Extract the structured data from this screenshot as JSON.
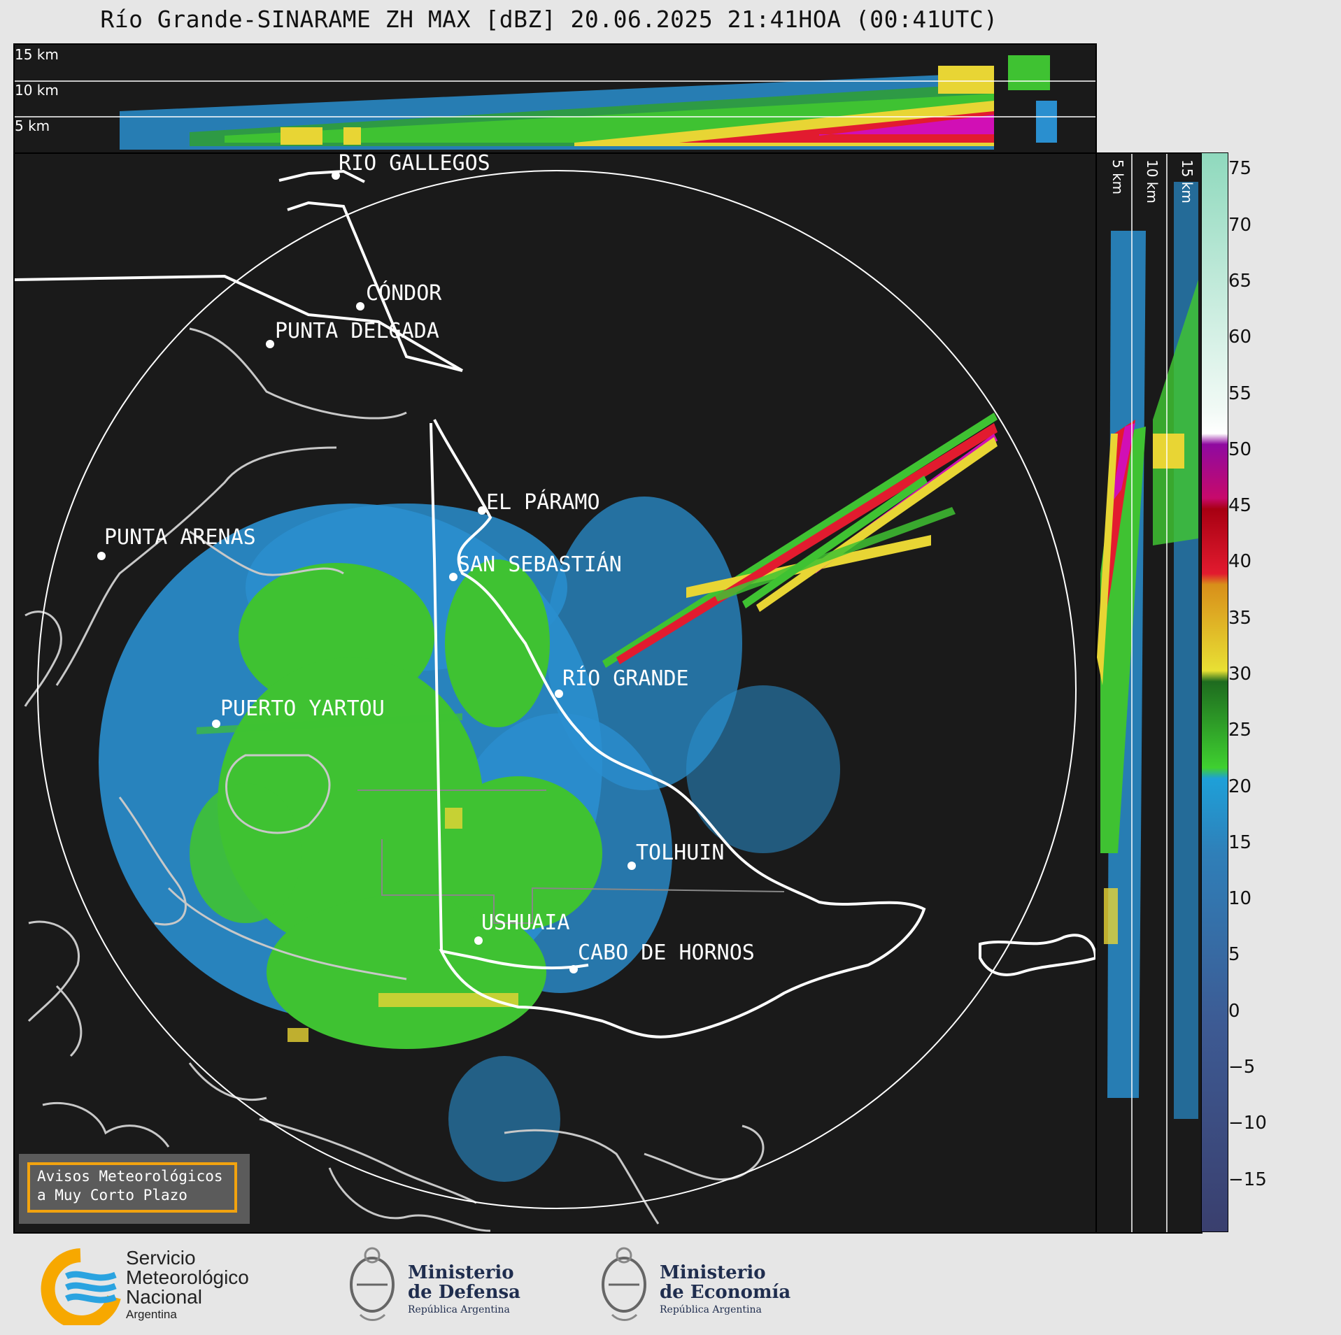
{
  "title": "Río Grande-SINARAME ZH MAX [dBZ] 20.06.2025 21:41HOA (00:41UTC)",
  "top_panel_altitudes": [
    "15 km",
    "10 km",
    "5 km"
  ],
  "side_panel_altitudes": [
    "5 km",
    "10 km",
    "15 km"
  ],
  "colorbar": {
    "ticks": [
      "75",
      "70",
      "65",
      "60",
      "55",
      "50",
      "45",
      "40",
      "35",
      "30",
      "25",
      "20",
      "15",
      "10",
      "5",
      "0",
      "−5",
      "−10",
      "−15"
    ],
    "bands": [
      {
        "from": -20,
        "to": 15,
        "color": "#3d4a85"
      },
      {
        "from": 15,
        "to": 18,
        "color": "#1ea0d8"
      },
      {
        "from": 18,
        "to": 30,
        "color": "#3fd030"
      },
      {
        "from": 30,
        "to": 42,
        "color": "#e8d534"
      },
      {
        "from": 42,
        "to": 50,
        "color": "#e21b2f"
      },
      {
        "from": 50,
        "to": 58,
        "color": "#d10fb5"
      },
      {
        "from": 58,
        "to": 60,
        "color": "#ffffff"
      },
      {
        "from": 60,
        "to": 77,
        "color": "#a8e8cf"
      }
    ]
  },
  "cities": [
    {
      "name": "RÍO GALLEGOS"
    },
    {
      "name": "CÓNDOR"
    },
    {
      "name": "PUNTA DELGADA"
    },
    {
      "name": "EL PÁRAMO"
    },
    {
      "name": "PUNTA ARENAS"
    },
    {
      "name": "SAN SEBASTIÁN"
    },
    {
      "name": "RÍO GRANDE"
    },
    {
      "name": "PUERTO YARTOU"
    },
    {
      "name": "TOLHUIN"
    },
    {
      "name": "USHUAIA"
    },
    {
      "name": "CABO DE HORNOS"
    }
  ],
  "alert": {
    "line1": "Avisos Meteorológicos",
    "line2": "a Muy Corto Plazo"
  },
  "logos": {
    "smn": {
      "line1": "Servicio",
      "line2": "Meteorológico",
      "line3": "Nacional",
      "line4": "Argentina"
    },
    "defensa": {
      "line1": "Ministerio",
      "line2": "de Defensa",
      "line3": "República Argentina"
    },
    "economia": {
      "line1": "Ministerio",
      "line2": "de Economía",
      "line3": "República Argentina"
    }
  },
  "colors": {
    "background": "#1a1a1a",
    "radar_blue": "#2a8fcf",
    "radar_green": "#3fc232",
    "radar_yellow": "#e8d534",
    "radar_red": "#e21b2f",
    "radar_magenta": "#d10fb5",
    "alert_border": "#f2a30f"
  }
}
